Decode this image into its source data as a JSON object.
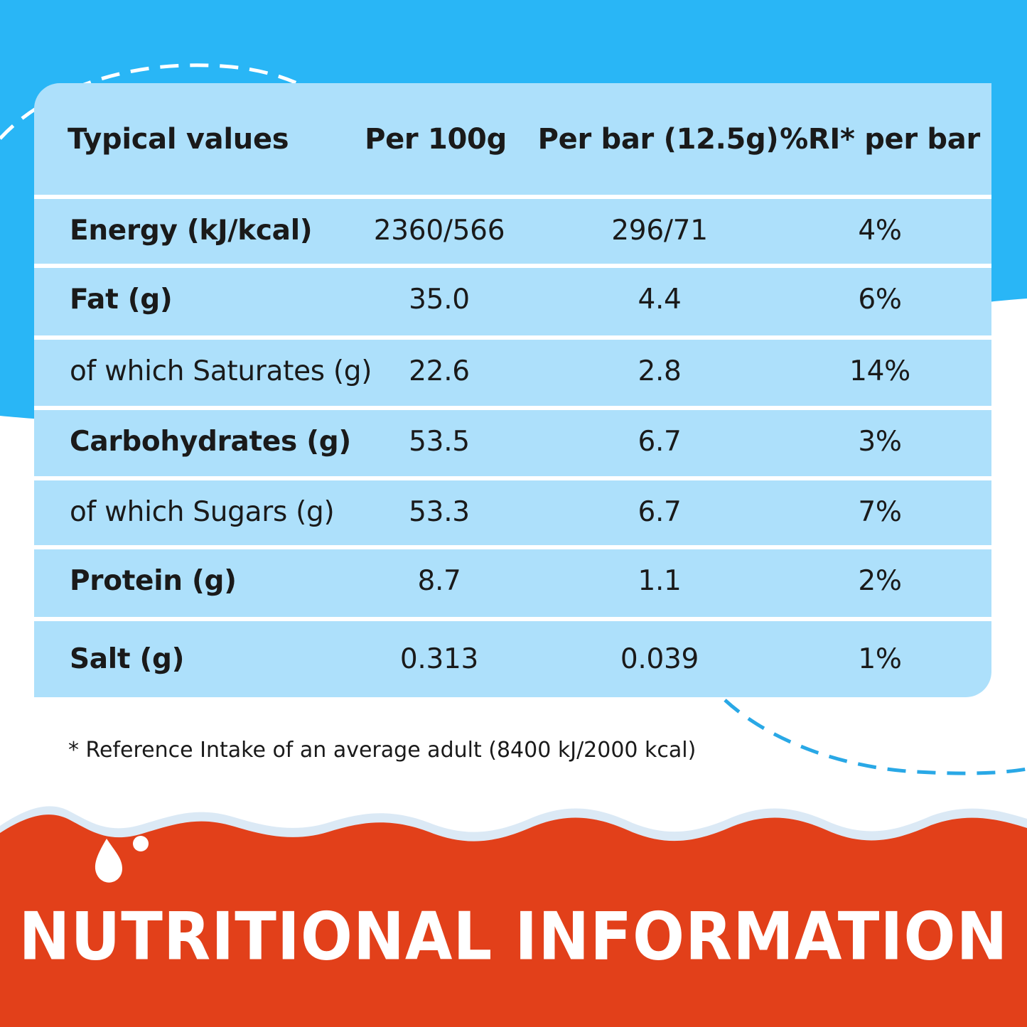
{
  "colors": {
    "sky_blue": "#29b6f6",
    "table_blue": "#ade0fb",
    "dash_blue": "#29a8e6",
    "orange_red": "#e2401a",
    "milk_white": "#ffffff"
  },
  "icons": [
    "milk-drop-icon"
  ],
  "table": {
    "headers": [
      "Typical values",
      "Per 100g",
      "Per bar (12.5g)",
      "%RI* per bar"
    ],
    "rows": [
      {
        "label": "Energy (kJ/kcal)",
        "bold": true,
        "per100g": "2360/566",
        "perbar": "296/71",
        "ri": "4%"
      },
      {
        "label": "Fat (g)",
        "bold": true,
        "per100g": "35.0",
        "perbar": "4.4",
        "ri": "6%"
      },
      {
        "label": "of which Saturates (g)",
        "bold": false,
        "per100g": "22.6",
        "perbar": "2.8",
        "ri": "14%"
      },
      {
        "label": "Carbohydrates (g)",
        "bold": true,
        "per100g": "53.5",
        "perbar": "6.7",
        "ri": "3%"
      },
      {
        "label": "of which Sugars (g)",
        "bold": false,
        "per100g": "53.3",
        "perbar": "6.7",
        "ri": "7%"
      },
      {
        "label": "Protein (g)",
        "bold": true,
        "per100g": "8.7",
        "perbar": "1.1",
        "ri": "2%"
      },
      {
        "label": "Salt (g)",
        "bold": true,
        "per100g": "0.313",
        "perbar": "0.039",
        "ri": "1%"
      }
    ]
  },
  "footnote": "* Reference Intake of an average adult (8400 kJ/2000 kcal)",
  "banner": {
    "title": "NUTRITIONAL INFORMATION"
  }
}
